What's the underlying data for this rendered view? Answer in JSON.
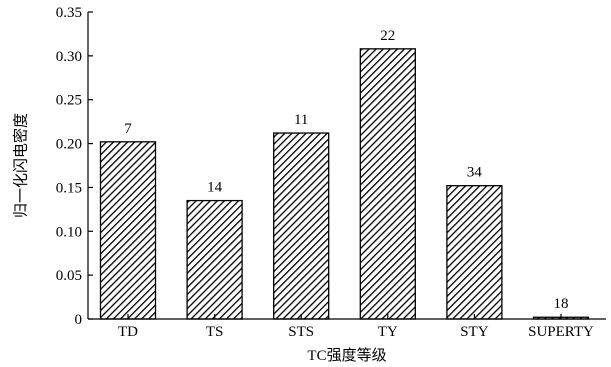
{
  "chart_data": {
    "type": "bar",
    "title": "",
    "xlabel": "TC强度等级",
    "ylabel": "归一化闪电密度",
    "categories": [
      "TD",
      "TS",
      "STS",
      "TY",
      "STY",
      "SUPERTY"
    ],
    "values": [
      0.202,
      0.135,
      0.212,
      0.308,
      0.152,
      0.002
    ],
    "data_labels": [
      "7",
      "14",
      "11",
      "22",
      "34",
      "18"
    ],
    "ylim": [
      0,
      0.35
    ],
    "yticks": [
      0,
      0.05,
      0.1,
      0.15,
      0.2,
      0.25,
      0.3,
      0.35
    ],
    "ytick_labels": [
      "0",
      "0.05",
      "0.10",
      "0.15",
      "0.20",
      "0.25",
      "0.30",
      "0.35"
    ],
    "grid": false,
    "legend": "none",
    "bar_fill": "diagonal-hatch",
    "bar_color": "#000000"
  }
}
